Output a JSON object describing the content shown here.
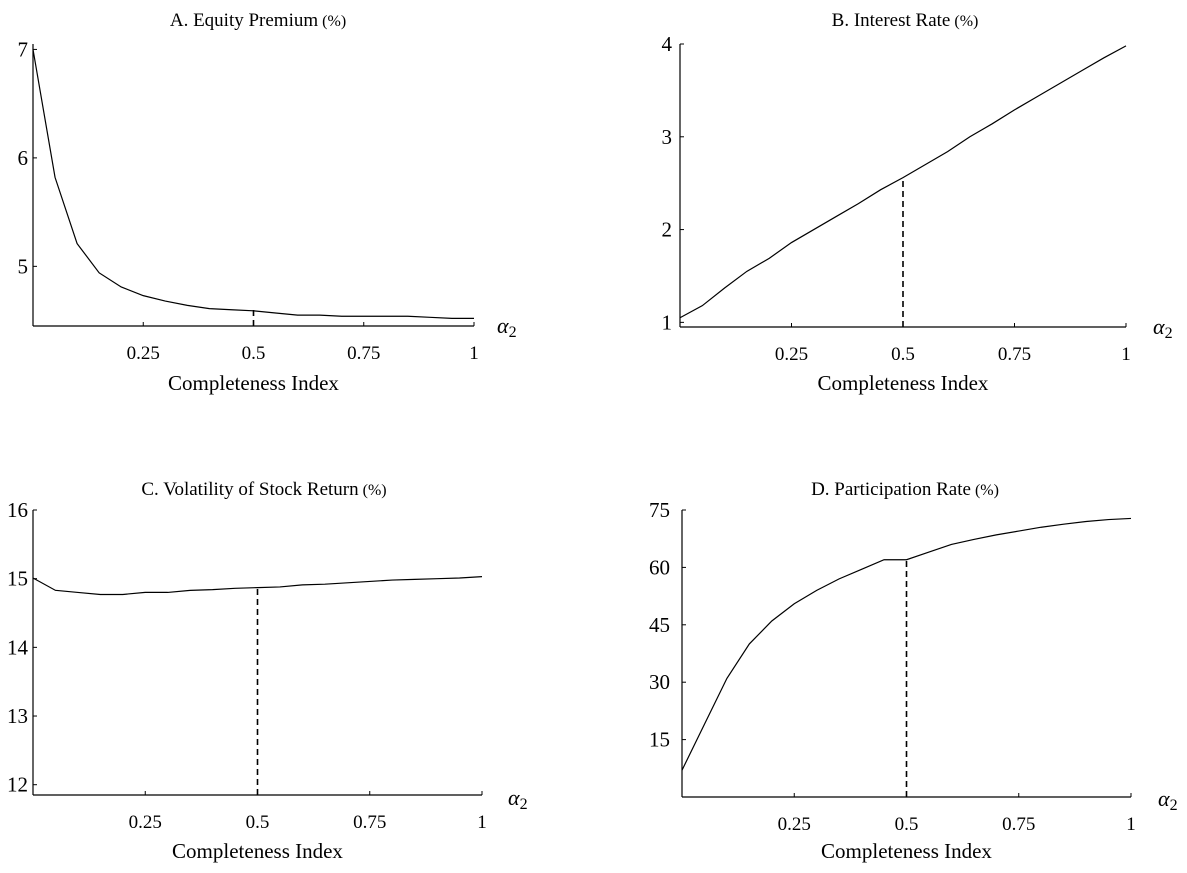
{
  "colors": {
    "line": "#000000",
    "background": "#ffffff"
  },
  "chart_data": [
    {
      "id": "A",
      "type": "line",
      "title": "A. Equity Premium",
      "title_unit": "(%)",
      "xlabel": "Completeness Index",
      "x_axis_symbol": "α",
      "x_axis_symbol_sub": "2",
      "xticks": [
        0.25,
        0.5,
        0.75,
        1
      ],
      "xtick_labels": [
        "0.25",
        "0.5",
        "0.75",
        "1"
      ],
      "yticks": [
        5,
        6,
        7
      ],
      "ytick_labels": [
        "5",
        "6",
        "7"
      ],
      "xlim": [
        0,
        1
      ],
      "ylim": [
        4.45,
        7.05
      ],
      "grid": false,
      "reference_line": {
        "x": 0.5,
        "style": "dashed",
        "y_top": 4.6
      },
      "series": [
        {
          "x": [
            0.0,
            0.05,
            0.1,
            0.15,
            0.2,
            0.25,
            0.3,
            0.35,
            0.4,
            0.45,
            0.5,
            0.55,
            0.6,
            0.65,
            0.7,
            0.75,
            0.8,
            0.85,
            0.9,
            0.95,
            1.0
          ],
          "y": [
            7.0,
            5.82,
            5.21,
            4.94,
            4.81,
            4.73,
            4.68,
            4.64,
            4.61,
            4.6,
            4.59,
            4.57,
            4.55,
            4.55,
            4.54,
            4.54,
            4.54,
            4.54,
            4.53,
            4.52,
            4.52
          ]
        }
      ]
    },
    {
      "id": "B",
      "type": "line",
      "title": "B. Interest Rate",
      "title_unit": "(%)",
      "xlabel": "Completeness Index",
      "x_axis_symbol": "α",
      "x_axis_symbol_sub": "2",
      "xticks": [
        0.25,
        0.5,
        0.75,
        1
      ],
      "xtick_labels": [
        "0.25",
        "0.5",
        "0.75",
        "1"
      ],
      "yticks": [
        1,
        2,
        3,
        4
      ],
      "ytick_labels": [
        "1",
        "2",
        "3",
        "4"
      ],
      "xlim": [
        0,
        1
      ],
      "ylim": [
        0.95,
        4.0
      ],
      "grid": false,
      "reference_line": {
        "x": 0.5,
        "style": "dashed",
        "y_top": 2.56
      },
      "series": [
        {
          "x": [
            0.0,
            0.05,
            0.1,
            0.15,
            0.2,
            0.25,
            0.3,
            0.35,
            0.4,
            0.45,
            0.5,
            0.55,
            0.6,
            0.65,
            0.7,
            0.75,
            0.8,
            0.85,
            0.9,
            0.95,
            1.0
          ],
          "y": [
            1.05,
            1.18,
            1.37,
            1.55,
            1.69,
            1.86,
            2.0,
            2.14,
            2.28,
            2.43,
            2.56,
            2.7,
            2.84,
            3.0,
            3.14,
            3.29,
            3.43,
            3.57,
            3.71,
            3.85,
            3.98
          ]
        }
      ]
    },
    {
      "id": "C",
      "type": "line",
      "title": "C. Volatility of Stock Return",
      "title_unit": "(%)",
      "xlabel": "Completeness Index",
      "x_axis_symbol": "α",
      "x_axis_symbol_sub": "2",
      "xticks": [
        0.25,
        0.5,
        0.75,
        1
      ],
      "xtick_labels": [
        "0.25",
        "0.5",
        "0.75",
        "1"
      ],
      "yticks": [
        12,
        13,
        14,
        15,
        16
      ],
      "ytick_labels": [
        "12",
        "13",
        "14",
        "15",
        "16"
      ],
      "xlim": [
        0,
        1
      ],
      "ylim": [
        11.85,
        16.0
      ],
      "grid": false,
      "reference_line": {
        "x": 0.5,
        "style": "dashed",
        "y_top": 14.87
      },
      "series": [
        {
          "x": [
            0.0,
            0.05,
            0.1,
            0.15,
            0.2,
            0.25,
            0.3,
            0.35,
            0.4,
            0.45,
            0.5,
            0.55,
            0.6,
            0.65,
            0.7,
            0.75,
            0.8,
            0.85,
            0.9,
            0.95,
            1.0
          ],
          "y": [
            15.01,
            14.83,
            14.8,
            14.77,
            14.77,
            14.8,
            14.8,
            14.83,
            14.84,
            14.86,
            14.87,
            14.88,
            14.91,
            14.92,
            14.94,
            14.96,
            14.98,
            14.99,
            15.0,
            15.01,
            15.03
          ]
        }
      ]
    },
    {
      "id": "D",
      "type": "line",
      "title": "D. Participation Rate",
      "title_unit": "(%)",
      "xlabel": "Completeness Index",
      "x_axis_symbol": "α",
      "x_axis_symbol_sub": "2",
      "xticks": [
        0.25,
        0.5,
        0.75,
        1
      ],
      "xtick_labels": [
        "0.25",
        "0.5",
        "0.75",
        "1"
      ],
      "yticks": [
        15,
        30,
        45,
        60,
        75
      ],
      "ytick_labels": [
        "15",
        "30",
        "45",
        "60",
        "75"
      ],
      "xlim": [
        0,
        1
      ],
      "ylim": [
        0,
        75
      ],
      "grid": false,
      "reference_line": {
        "x": 0.5,
        "style": "dashed",
        "y_top": 62
      },
      "series": [
        {
          "x": [
            0.0,
            0.05,
            0.1,
            0.15,
            0.2,
            0.25,
            0.3,
            0.35,
            0.4,
            0.45,
            0.5,
            0.55,
            0.6,
            0.65,
            0.7,
            0.75,
            0.8,
            0.85,
            0.9,
            0.95,
            1.0
          ],
          "y": [
            7,
            19,
            31,
            40,
            46,
            50.5,
            54,
            57,
            59.5,
            62,
            62,
            64,
            66,
            67.3,
            68.5,
            69.5,
            70.5,
            71.3,
            72,
            72.5,
            72.8
          ]
        }
      ]
    }
  ]
}
